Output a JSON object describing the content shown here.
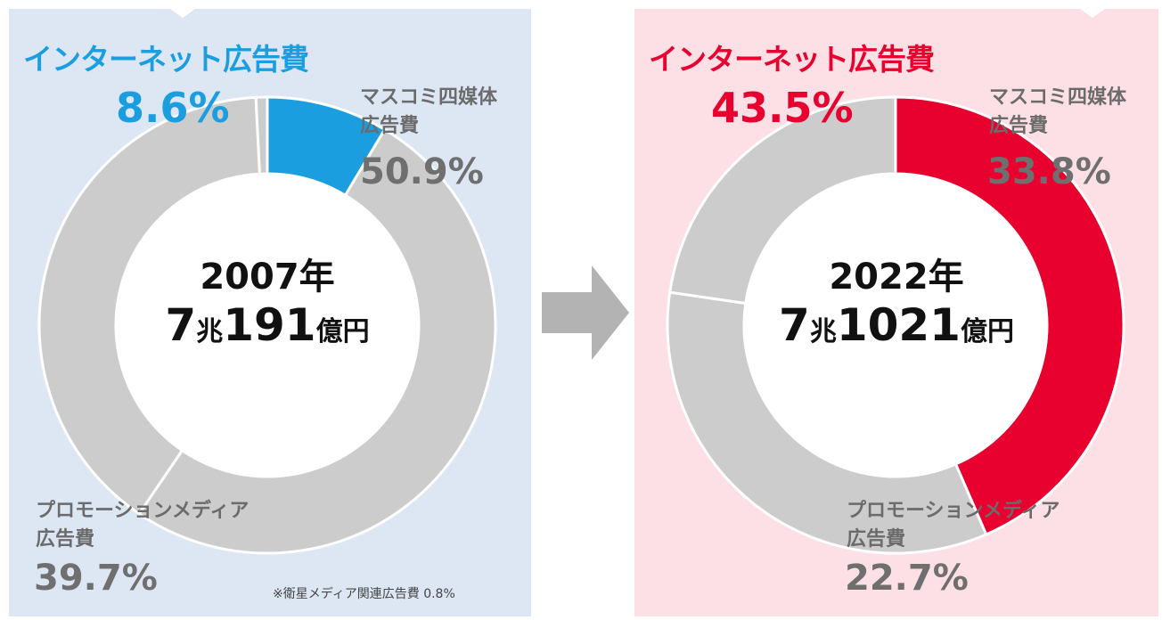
{
  "colors": {
    "panel_2007_bg": "#dde7f4",
    "panel_2022_bg": "#fde0e5",
    "internet_2007": "#1a9ee0",
    "internet_2022": "#e8002e",
    "other_segments": "#cccccc",
    "arrow": "#b3b3b3"
  },
  "chart_data": [
    {
      "type": "pie",
      "year_label": "2007年",
      "total": {
        "main": "7",
        "unit1": "兆",
        "main2": "191",
        "unit2": "億円"
      },
      "internet_title": "インターネット広告費",
      "internet_pct_text": "8.6%",
      "segments": [
        {
          "name": "インターネット広告費",
          "value": 8.6,
          "color": "#1a9ee0"
        },
        {
          "name": "マスコミ四媒体広告費",
          "value": 50.9,
          "color": "#cccccc"
        },
        {
          "name": "プロモーションメディア広告費",
          "value": 39.7,
          "color": "#cccccc"
        },
        {
          "name": "衛星メディア関連広告費",
          "value": 0.8,
          "color": "#cccccc"
        }
      ],
      "mass_label_line1": "マスコミ四媒体",
      "mass_label_line2": "広告費",
      "mass_pct_text": "50.9%",
      "promo_label_line1": "プロモーションメディア",
      "promo_label_line2": "広告費",
      "promo_pct_text": "39.7%",
      "note": "※衛星メディア関連広告費 0.8%"
    },
    {
      "type": "pie",
      "year_label": "2022年",
      "total": {
        "main": "7",
        "unit1": "兆",
        "main2": "1021",
        "unit2": "億円"
      },
      "internet_title": "インターネット広告費",
      "internet_pct_text": "43.5%",
      "segments": [
        {
          "name": "インターネット広告費",
          "value": 43.5,
          "color": "#e8002e"
        },
        {
          "name": "マスコミ四媒体広告費",
          "value": 33.8,
          "color": "#cccccc"
        },
        {
          "name": "プロモーションメディア広告費",
          "value": 22.7,
          "color": "#cccccc"
        }
      ],
      "mass_label_line1": "マスコミ四媒体",
      "mass_label_line2": "広告費",
      "mass_pct_text": "33.8%",
      "promo_label_line1": "プロモーションメディア",
      "promo_label_line2": "広告費",
      "promo_pct_text": "22.7%"
    }
  ]
}
